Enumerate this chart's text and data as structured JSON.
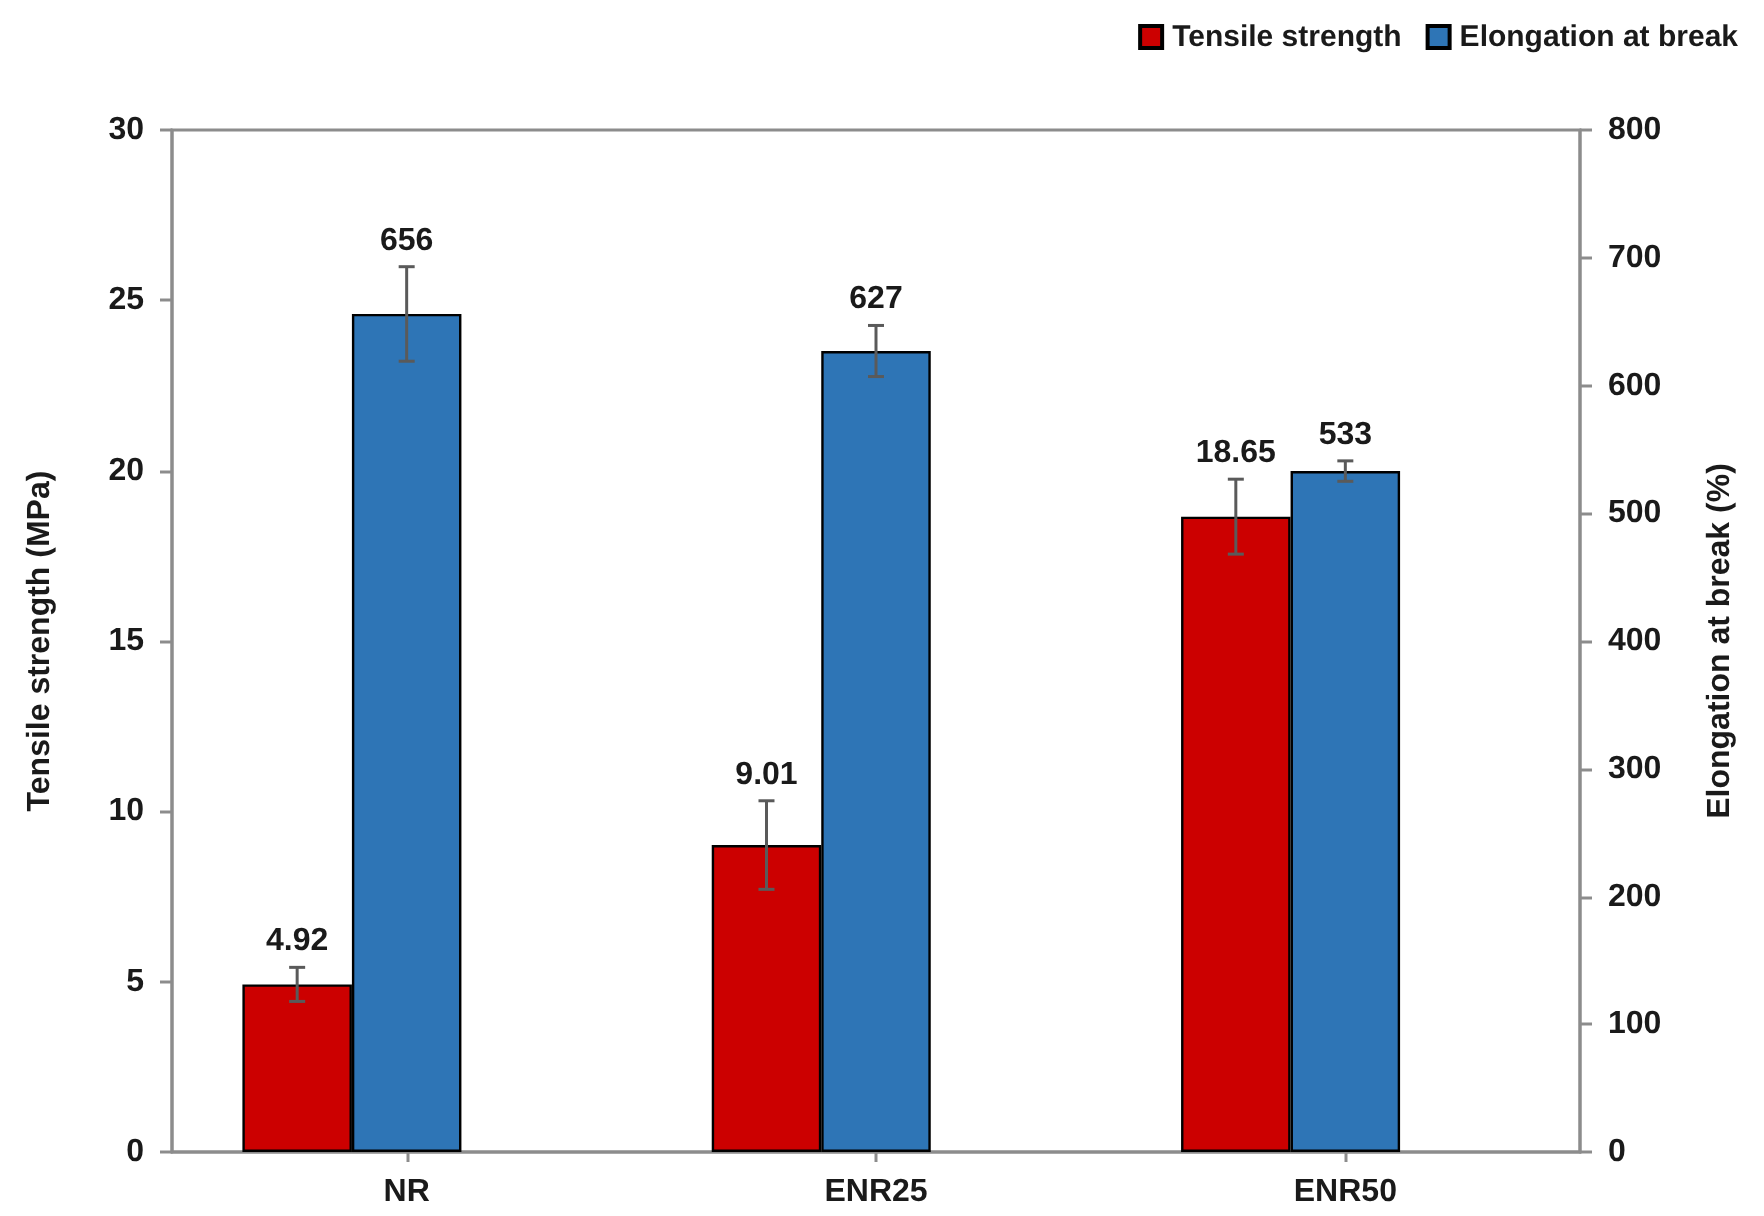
{
  "chart_data": {
    "type": "bar",
    "categories": [
      "NR",
      "ENR25",
      "ENR50"
    ],
    "series": [
      {
        "name": "Tensile strength",
        "color": "#cc0000",
        "values": [
          4.92,
          9.01,
          18.65
        ],
        "errors": [
          0.5,
          1.3,
          1.1
        ]
      },
      {
        "name": "Elongation at break",
        "color": "#2e75b6",
        "values": [
          656,
          627,
          533
        ],
        "errors": [
          37,
          20,
          8
        ],
        "axis": "y2"
      }
    ],
    "ylabel": "Tensile strength (MPa)",
    "y2label": "Elongation at break (%)",
    "ylim": [
      0,
      30
    ],
    "yticks": [
      0,
      5,
      10,
      15,
      20,
      25,
      30
    ],
    "y2lim": [
      0,
      800
    ],
    "y2ticks": [
      0,
      100,
      200,
      300,
      400,
      500,
      600,
      700,
      800
    ],
    "data_labels": true,
    "legend": "top right"
  }
}
